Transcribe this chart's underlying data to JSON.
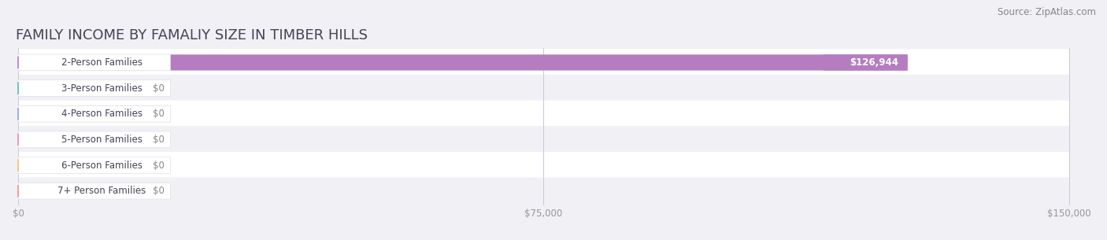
{
  "title": "FAMILY INCOME BY FAMALIY SIZE IN TIMBER HILLS",
  "source": "Source: ZipAtlas.com",
  "categories": [
    "2-Person Families",
    "3-Person Families",
    "4-Person Families",
    "5-Person Families",
    "6-Person Families",
    "7+ Person Families"
  ],
  "values": [
    126944,
    0,
    0,
    0,
    0,
    0
  ],
  "bar_colors": [
    "#b57dc0",
    "#72c4c4",
    "#a0aee0",
    "#f09ab0",
    "#f5c888",
    "#f0a098"
  ],
  "label_dot_colors": [
    "#c090cc",
    "#72c4c4",
    "#a0aee0",
    "#f09ab0",
    "#f5c888",
    "#f0a098"
  ],
  "value_labels": [
    "$126,944",
    "$0",
    "$0",
    "$0",
    "$0",
    "$0"
  ],
  "xlim": [
    0,
    150000
  ],
  "xticks": [
    0,
    75000,
    150000
  ],
  "xticklabels": [
    "$0",
    "$75,000",
    "$150,000"
  ],
  "bar_height": 0.62,
  "background_color": "#f0f0f5",
  "row_bg_even": "#ffffff",
  "row_bg_odd": "#f0f0f5",
  "title_fontsize": 13,
  "source_fontsize": 8.5,
  "label_fontsize": 8.5,
  "value_fontsize": 8.5,
  "zero_bar_width": 18000
}
